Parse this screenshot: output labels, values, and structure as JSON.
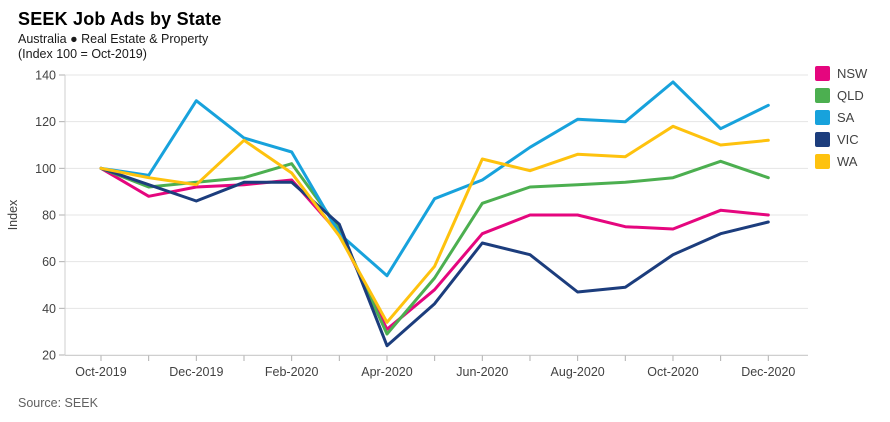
{
  "header": {
    "title": "SEEK Job Ads by State",
    "subtitle": "Australia ● Real Estate & Property",
    "index_note": "(Index 100 = Oct-2019)"
  },
  "source": "Source: SEEK",
  "chart_data": {
    "type": "line",
    "title": "SEEK Job Ads by State",
    "xlabel": "",
    "ylabel": "Index",
    "ylim": [
      20,
      140
    ],
    "ytick_step": 20,
    "grid": true,
    "legend_position": "right",
    "categories": [
      "Oct-2019",
      "Nov-2019",
      "Dec-2019",
      "Jan-2020",
      "Feb-2020",
      "Mar-2020",
      "Apr-2020",
      "May-2020",
      "Jun-2020",
      "Jul-2020",
      "Aug-2020",
      "Sep-2020",
      "Oct-2020",
      "Nov-2020",
      "Dec-2020"
    ],
    "xtick_labels": [
      "Oct-2019",
      "Dec-2019",
      "Feb-2020",
      "Apr-2020",
      "Jun-2020",
      "Aug-2020",
      "Oct-2020",
      "Dec-2020"
    ],
    "series": [
      {
        "name": "NSW",
        "color": "#E5067E",
        "values": [
          100,
          88,
          92,
          93,
          95,
          72,
          31,
          48,
          72,
          80,
          80,
          75,
          74,
          82,
          80
        ]
      },
      {
        "name": "QLD",
        "color": "#4CAF50",
        "values": [
          100,
          92,
          94,
          96,
          102,
          74,
          29,
          53,
          85,
          92,
          93,
          94,
          96,
          103,
          96
        ]
      },
      {
        "name": "SA",
        "color": "#17A2DC",
        "values": [
          100,
          97,
          129,
          113,
          107,
          72,
          54,
          87,
          95,
          109,
          121,
          120,
          137,
          117,
          127
        ]
      },
      {
        "name": "VIC",
        "color": "#1C3D7D",
        "values": [
          100,
          93,
          86,
          94,
          94,
          76,
          24,
          42,
          68,
          63,
          47,
          49,
          63,
          72,
          77
        ]
      },
      {
        "name": "WA",
        "color": "#FEC20E",
        "values": [
          100,
          96,
          93,
          112,
          98,
          71,
          34,
          58,
          104,
          99,
          106,
          105,
          118,
          110,
          112
        ]
      }
    ],
    "axis_colors": {
      "grid": "#e4e4e4",
      "axis": "#cfcfcf",
      "tick": "#b0b0b0",
      "tick_label": "#424242"
    }
  }
}
